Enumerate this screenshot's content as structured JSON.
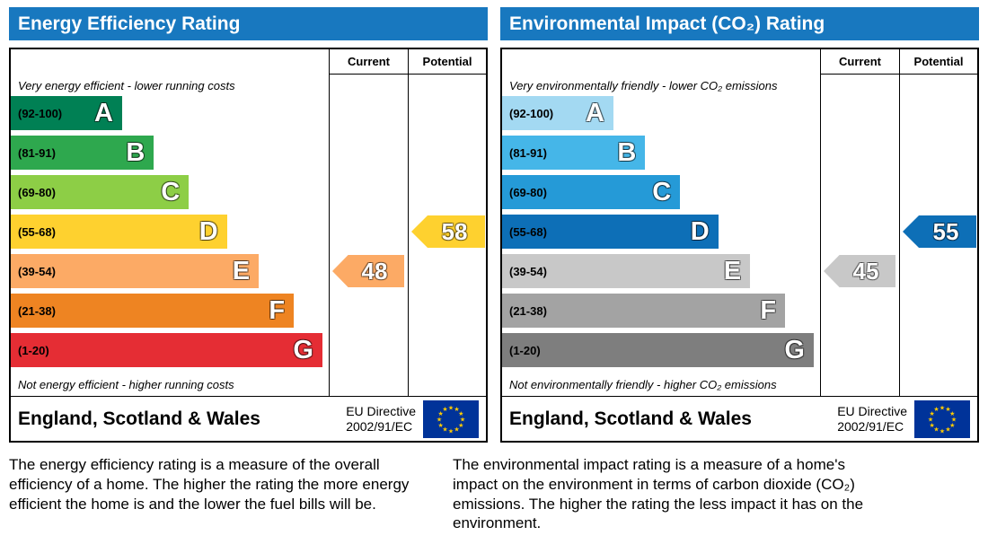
{
  "page": {
    "header_color": "#1878bf",
    "panels": [
      {
        "title": "Energy Efficiency Rating",
        "columns": {
          "current": "Current",
          "potential": "Potential"
        },
        "top_note": "Very energy efficient - lower running costs",
        "bottom_note": "Not energy efficient - higher running costs",
        "bands": [
          {
            "range": "(92-100)",
            "letter": "A",
            "color": "#008054",
            "width_pct": 35
          },
          {
            "range": "(81-91)",
            "letter": "B",
            "color": "#2ea84e",
            "width_pct": 45
          },
          {
            "range": "(69-80)",
            "letter": "C",
            "color": "#8dce46",
            "width_pct": 56
          },
          {
            "range": "(55-68)",
            "letter": "D",
            "color": "#fed12f",
            "width_pct": 68
          },
          {
            "range": "(39-54)",
            "letter": "E",
            "color": "#fcaa65",
            "width_pct": 78
          },
          {
            "range": "(21-38)",
            "letter": "F",
            "color": "#ee8422",
            "width_pct": 89
          },
          {
            "range": "(1-20)",
            "letter": "G",
            "color": "#e52d34",
            "width_pct": 98
          }
        ],
        "current": {
          "value": "48",
          "row": 4,
          "color": "#fcaa65"
        },
        "potential": {
          "value": "58",
          "row": 3,
          "color": "#fed12f"
        },
        "footer": {
          "region": "England, Scotland & Wales",
          "directive_line1": "EU Directive",
          "directive_line2": "2002/91/EC"
        },
        "description": "The energy efficiency rating is a measure of the overall efficiency of a home. The higher the rating the more energy efficient the home is and the lower the fuel bills will be."
      },
      {
        "title": "Environmental Impact (CO₂) Rating",
        "columns": {
          "current": "Current",
          "potential": "Potential"
        },
        "top_note": "Very environmentally friendly - lower CO₂ emissions",
        "bottom_note": "Not environmentally friendly - higher CO₂ emissions",
        "bands": [
          {
            "range": "(92-100)",
            "letter": "A",
            "color": "#a3d9f2",
            "width_pct": 35
          },
          {
            "range": "(81-91)",
            "letter": "B",
            "color": "#45b6e8",
            "width_pct": 45
          },
          {
            "range": "(69-80)",
            "letter": "C",
            "color": "#259ad7",
            "width_pct": 56
          },
          {
            "range": "(55-68)",
            "letter": "D",
            "color": "#0d6fb7",
            "width_pct": 68
          },
          {
            "range": "(39-54)",
            "letter": "E",
            "color": "#c8c8c8",
            "width_pct": 78
          },
          {
            "range": "(21-38)",
            "letter": "F",
            "color": "#a3a3a3",
            "width_pct": 89
          },
          {
            "range": "(1-20)",
            "letter": "G",
            "color": "#7e7e7e",
            "width_pct": 98
          }
        ],
        "current": {
          "value": "45",
          "row": 4,
          "color": "#c8c8c8"
        },
        "potential": {
          "value": "55",
          "row": 3,
          "color": "#0d6fb7"
        },
        "footer": {
          "region": "England, Scotland & Wales",
          "directive_line1": "EU Directive",
          "directive_line2": "2002/91/EC"
        },
        "description": "The environmental impact rating is a measure of a home's impact on the environment in terms of carbon dioxide (CO₂) emissions. The higher the rating the less impact it has on the environment."
      }
    ]
  },
  "chart_data": [
    {
      "type": "bar",
      "title": "Energy Efficiency Rating",
      "categories": [
        "A",
        "B",
        "C",
        "D",
        "E",
        "F",
        "G"
      ],
      "ranges": [
        "92-100",
        "81-91",
        "69-80",
        "55-68",
        "39-54",
        "21-38",
        "1-20"
      ],
      "current": {
        "value": 48,
        "band": "E"
      },
      "potential": {
        "value": 58,
        "band": "D"
      },
      "scale": [
        1,
        100
      ],
      "notes": [
        "Very energy efficient - lower running costs",
        "Not energy efficient - higher running costs"
      ],
      "footer": "England, Scotland & Wales — EU Directive 2002/91/EC"
    },
    {
      "type": "bar",
      "title": "Environmental Impact (CO₂) Rating",
      "categories": [
        "A",
        "B",
        "C",
        "D",
        "E",
        "F",
        "G"
      ],
      "ranges": [
        "92-100",
        "81-91",
        "69-80",
        "55-68",
        "39-54",
        "21-38",
        "1-20"
      ],
      "current": {
        "value": 45,
        "band": "E"
      },
      "potential": {
        "value": 55,
        "band": "D"
      },
      "scale": [
        1,
        100
      ],
      "notes": [
        "Very environmentally friendly - lower CO₂ emissions",
        "Not environmentally friendly - higher CO₂ emissions"
      ],
      "footer": "England, Scotland & Wales — EU Directive 2002/91/EC"
    }
  ]
}
